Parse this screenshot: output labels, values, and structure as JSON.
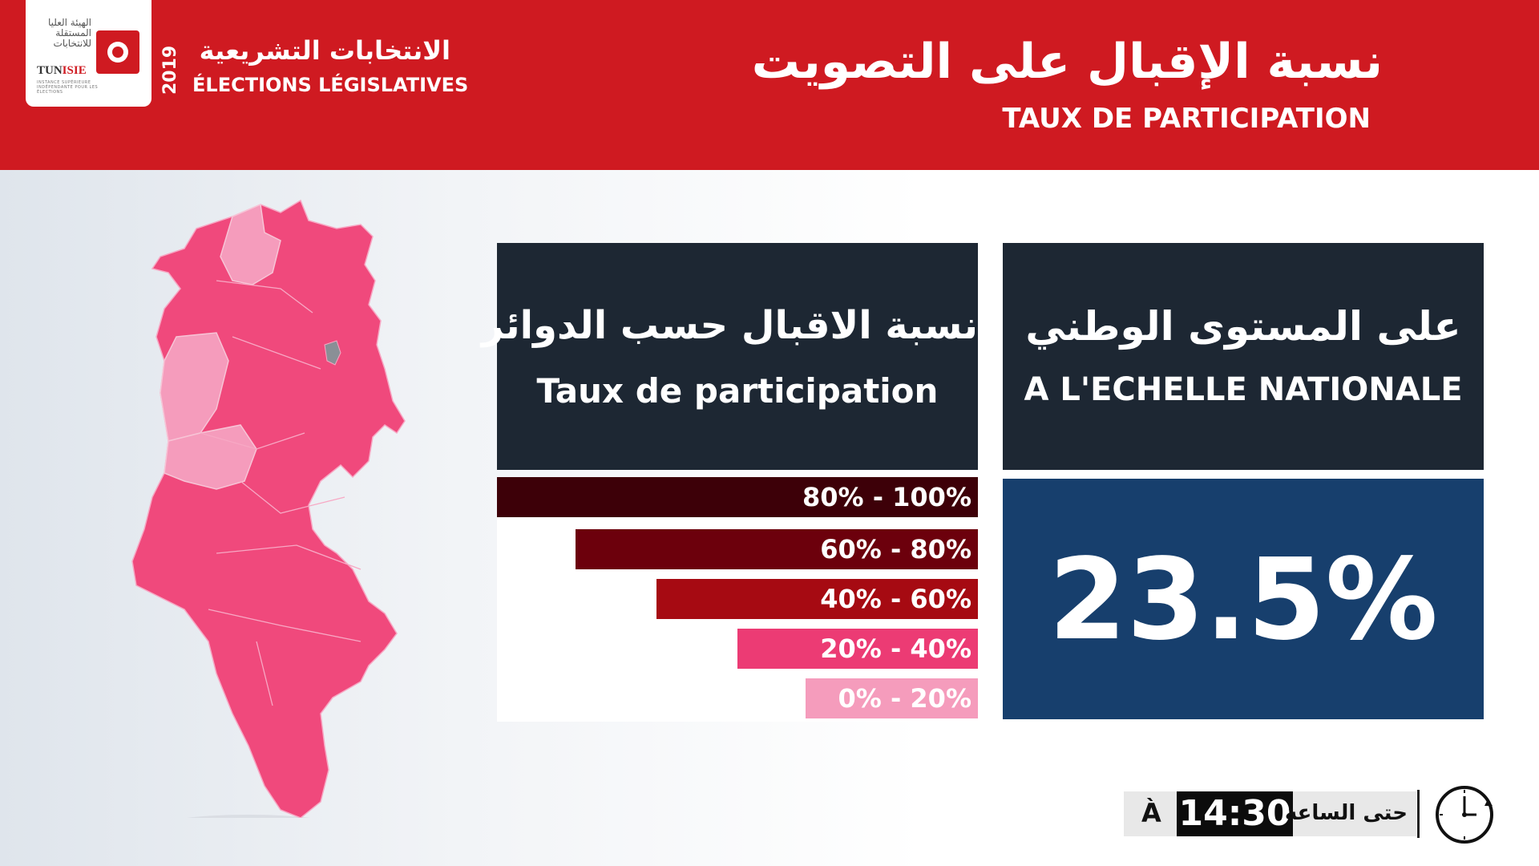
{
  "header": {
    "logo": {
      "arabic_text": "الهيئة العليا المستقلة للانتخابات",
      "name_part1": "TUN",
      "name_part2": "ISIE",
      "tagline": "INSTANCE SUPÉRIEURE INDÉPENDANTE POUR LES ÉLECTIONS"
    },
    "year": "2019",
    "election_ar": "الانتخابات التشريعية",
    "election_fr": "ÉLECTIONS LÉGISLATIVES",
    "title_ar": "نسبة الإقبال على التصويت",
    "title_fr": "TAUX DE PARTICIPATION"
  },
  "district_panel": {
    "title_ar": "نسبة الاقبال حسب الدوائر",
    "title_fr": "Taux de participation"
  },
  "national_panel": {
    "title_ar": "على المستوى الوطني",
    "title_fr": "A L'ECHELLE NATIONALE",
    "value": "23.5%"
  },
  "legend": [
    {
      "label": "80% - 100%",
      "color": "#3d0008"
    },
    {
      "label": "60% - 80%",
      "color": "#6c000c"
    },
    {
      "label": "40% - 60%",
      "color": "#a60a12"
    },
    {
      "label": "20% - 40%",
      "color": "#ec3b74"
    },
    {
      "label": "0% - 20%",
      "color": "#f59cbc"
    }
  ],
  "map_colors": {
    "main": "#f0497c",
    "light": "#f59cbc",
    "gray": "#8a8f96"
  },
  "time": {
    "prefix": "À",
    "value": "14:30",
    "label_ar": "حتى الساعة"
  }
}
